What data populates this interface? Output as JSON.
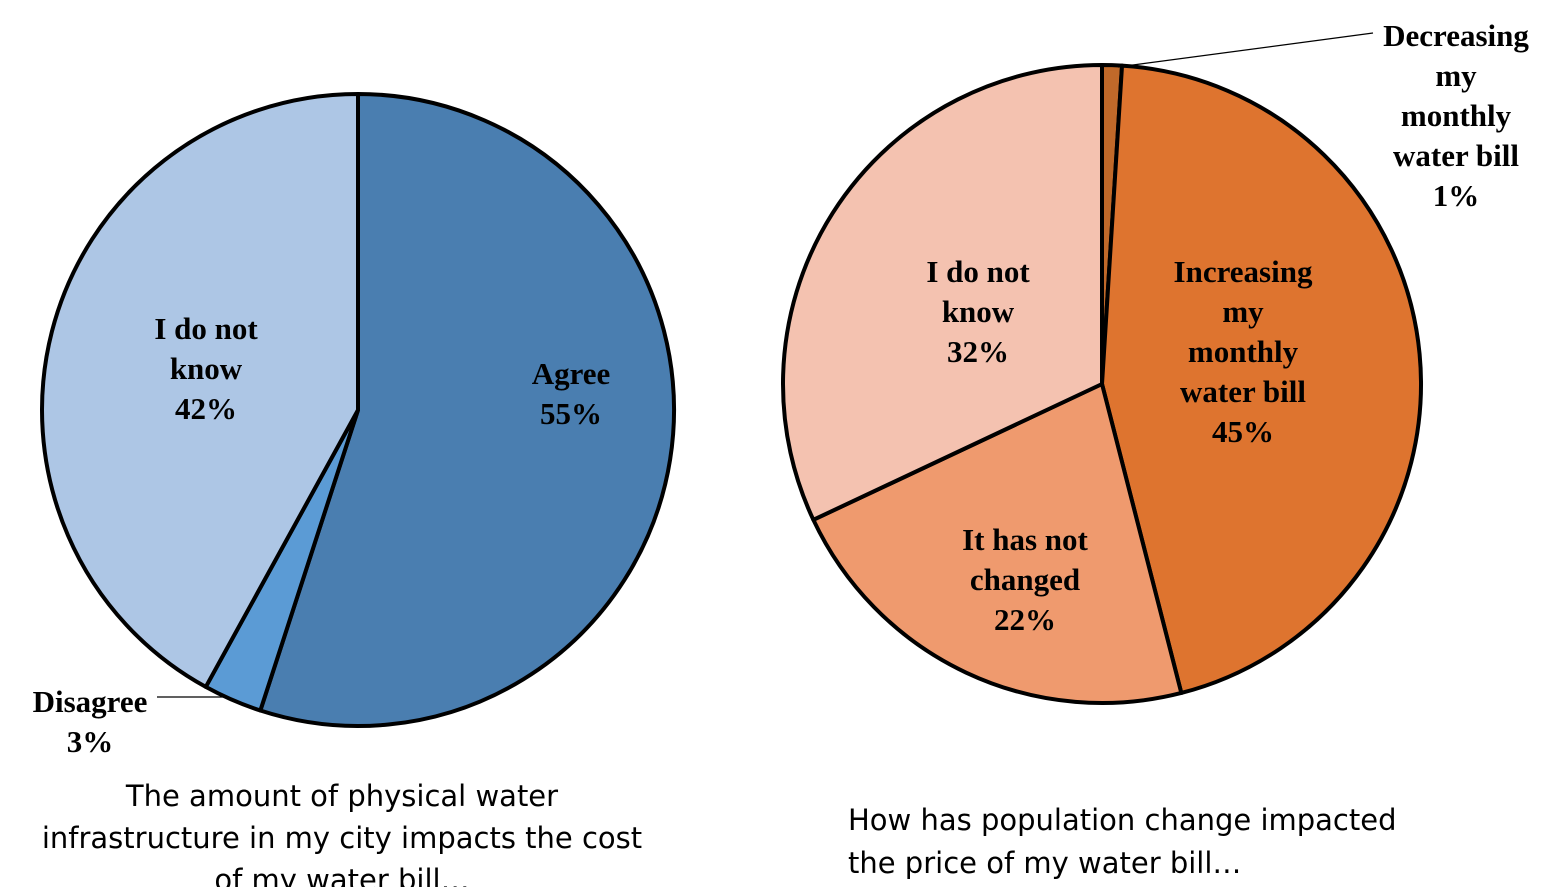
{
  "chart_data": [
    {
      "type": "pie",
      "title": "",
      "caption_lines": [
        "The amount of physical water",
        "infrastructure in my city impacts the cost",
        "of my water bill…"
      ],
      "slices": [
        {
          "label_lines": [
            "Agree"
          ],
          "value_label": "55%",
          "value": 55,
          "color": "#4A7EB0"
        },
        {
          "label_lines": [
            "Disagree"
          ],
          "value_label": "3%",
          "value": 3,
          "color": "#5B9BD5"
        },
        {
          "label_lines": [
            "I do not",
            "know"
          ],
          "value_label": "42%",
          "value": 42,
          "color": "#ADC6E5"
        }
      ],
      "start_angle_deg": 0,
      "direction": "clockwise"
    },
    {
      "type": "pie",
      "title": "",
      "caption_lines": [
        "How has population change impacted",
        "the price of my water bill…"
      ],
      "slices": [
        {
          "label_lines": [
            "Decreasing",
            "my",
            "monthly",
            "water bill"
          ],
          "value_label": "1%",
          "value": 1,
          "color": "#C0692A"
        },
        {
          "label_lines": [
            "Increasing",
            "my",
            "monthly",
            "water bill"
          ],
          "value_label": "45%",
          "value": 45,
          "color": "#DE742F"
        },
        {
          "label_lines": [
            "It has not",
            "changed"
          ],
          "value_label": "22%",
          "value": 22,
          "color": "#EF9A6E"
        },
        {
          "label_lines": [
            "I do not",
            "know"
          ],
          "value_label": "32%",
          "value": 32,
          "color": "#F4C2B0"
        }
      ],
      "start_angle_deg": 0,
      "direction": "clockwise"
    }
  ]
}
